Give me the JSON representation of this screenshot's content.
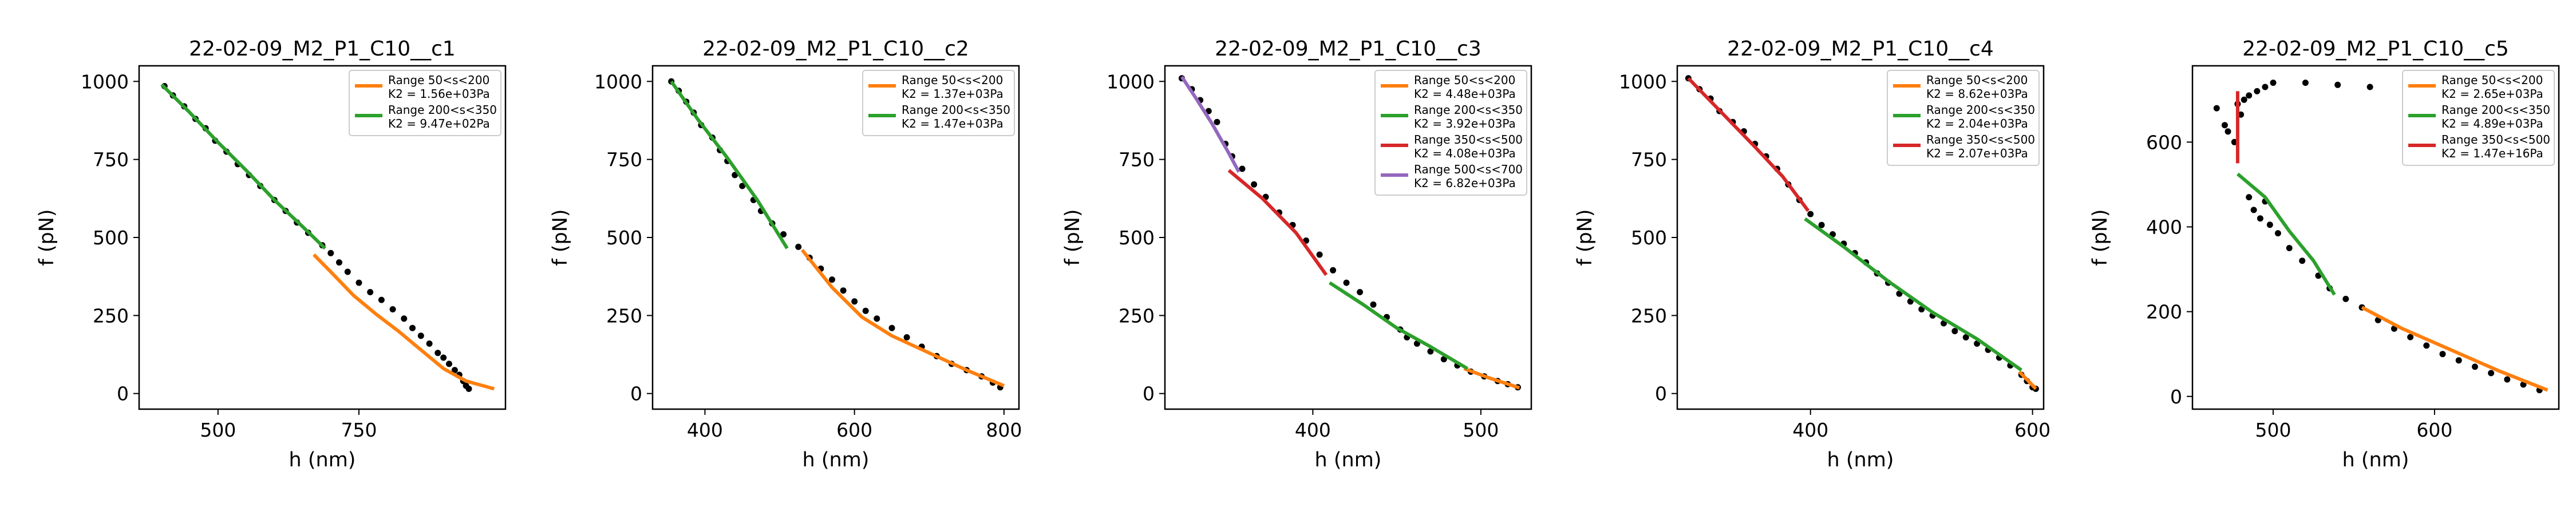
{
  "chart_data": [
    {
      "type": "scatter",
      "title": "22-02-09_M2_P1_C10__c1",
      "xlabel": "h (nm)",
      "ylabel": "f (pN)",
      "xlim": [
        360,
        1010
      ],
      "ylim": [
        -50,
        1050
      ],
      "xticks": [
        500,
        750
      ],
      "yticks": [
        0,
        250,
        500,
        750,
        1000
      ],
      "legend_position": "upper right",
      "points": [
        [
          405,
          985
        ],
        [
          420,
          955
        ],
        [
          440,
          920
        ],
        [
          460,
          880
        ],
        [
          478,
          850
        ],
        [
          495,
          810
        ],
        [
          515,
          775
        ],
        [
          535,
          735
        ],
        [
          555,
          700
        ],
        [
          575,
          665
        ],
        [
          600,
          620
        ],
        [
          620,
          585
        ],
        [
          640,
          548
        ],
        [
          660,
          515
        ],
        [
          685,
          475
        ],
        [
          700,
          450
        ],
        [
          715,
          420
        ],
        [
          730,
          390
        ],
        [
          750,
          355
        ],
        [
          770,
          325
        ],
        [
          790,
          300
        ],
        [
          810,
          270
        ],
        [
          830,
          240
        ],
        [
          845,
          210
        ],
        [
          860,
          185
        ],
        [
          875,
          160
        ],
        [
          890,
          130
        ],
        [
          900,
          115
        ],
        [
          910,
          95
        ],
        [
          920,
          75
        ],
        [
          928,
          60
        ],
        [
          935,
          40
        ],
        [
          940,
          25
        ],
        [
          945,
          15
        ]
      ],
      "series": [
        {
          "name": "Range 50<s<200",
          "sublabel": "K2 = 1.56e+03Pa",
          "color": "#ff7f0e",
          "points": [
            [
              670,
              445
            ],
            [
              700,
              390
            ],
            [
              740,
              315
            ],
            [
              780,
              255
            ],
            [
              820,
              200
            ],
            [
              860,
              140
            ],
            [
              900,
              80
            ],
            [
              940,
              40
            ],
            [
              990,
              15
            ]
          ]
        },
        {
          "name": "Range 200<s<350",
          "sublabel": "K2 = 9.47e+02Pa",
          "color": "#2ca02c",
          "points": [
            [
              400,
              990
            ],
            [
              450,
              900
            ],
            [
              500,
              805
            ],
            [
              550,
              715
            ],
            [
              600,
              620
            ],
            [
              650,
              535
            ],
            [
              690,
              465
            ]
          ]
        }
      ]
    },
    {
      "type": "scatter",
      "title": "22-02-09_M2_P1_C10__c2",
      "xlabel": "h (nm)",
      "ylabel": "f (pN)",
      "xlim": [
        330,
        820
      ],
      "ylim": [
        -50,
        1050
      ],
      "xticks": [
        400,
        600,
        800
      ],
      "yticks": [
        0,
        250,
        500,
        750,
        1000
      ],
      "legend_position": "upper right",
      "points": [
        [
          355,
          1000
        ],
        [
          365,
          970
        ],
        [
          375,
          935
        ],
        [
          385,
          900
        ],
        [
          395,
          860
        ],
        [
          410,
          820
        ],
        [
          420,
          780
        ],
        [
          430,
          745
        ],
        [
          440,
          700
        ],
        [
          450,
          665
        ],
        [
          465,
          620
        ],
        [
          475,
          585
        ],
        [
          490,
          545
        ],
        [
          505,
          510
        ],
        [
          525,
          470
        ],
        [
          540,
          435
        ],
        [
          555,
          400
        ],
        [
          570,
          365
        ],
        [
          585,
          330
        ],
        [
          600,
          295
        ],
        [
          615,
          265
        ],
        [
          630,
          240
        ],
        [
          650,
          210
        ],
        [
          670,
          180
        ],
        [
          690,
          150
        ],
        [
          710,
          120
        ],
        [
          730,
          95
        ],
        [
          750,
          75
        ],
        [
          770,
          55
        ],
        [
          785,
          35
        ],
        [
          795,
          20
        ]
      ],
      "series": [
        {
          "name": "Range 50<s<200",
          "sublabel": "K2 = 1.37e+03Pa",
          "color": "#ff7f0e",
          "points": [
            [
              530,
              460
            ],
            [
              570,
              340
            ],
            [
              610,
              245
            ],
            [
              650,
              185
            ],
            [
              700,
              130
            ],
            [
              750,
              75
            ],
            [
              800,
              25
            ]
          ]
        },
        {
          "name": "Range 200<s<350",
          "sublabel": "K2 = 1.47e+03Pa",
          "color": "#2ca02c",
          "points": [
            [
              355,
              1000
            ],
            [
              390,
              880
            ],
            [
              430,
              755
            ],
            [
              470,
              620
            ],
            [
              510,
              465
            ]
          ]
        }
      ]
    },
    {
      "type": "scatter",
      "title": "22-02-09_M2_P1_C10__c3",
      "xlabel": "h (nm)",
      "ylabel": "f (pN)",
      "xlim": [
        312,
        530
      ],
      "ylim": [
        -50,
        1050
      ],
      "xticks": [
        400,
        500
      ],
      "yticks": [
        0,
        250,
        500,
        750,
        1000
      ],
      "legend_position": "upper right",
      "points": [
        [
          322,
          1010
        ],
        [
          328,
          975
        ],
        [
          333,
          940
        ],
        [
          338,
          905
        ],
        [
          343,
          870
        ],
        [
          348,
          800
        ],
        [
          352,
          760
        ],
        [
          358,
          720
        ],
        [
          365,
          670
        ],
        [
          372,
          630
        ],
        [
          380,
          580
        ],
        [
          388,
          540
        ],
        [
          396,
          490
        ],
        [
          404,
          445
        ],
        [
          412,
          395
        ],
        [
          420,
          355
        ],
        [
          428,
          325
        ],
        [
          436,
          285
        ],
        [
          444,
          245
        ],
        [
          452,
          205
        ],
        [
          456,
          180
        ],
        [
          462,
          160
        ],
        [
          470,
          135
        ],
        [
          478,
          110
        ],
        [
          486,
          90
        ],
        [
          494,
          70
        ],
        [
          502,
          55
        ],
        [
          510,
          40
        ],
        [
          516,
          30
        ],
        [
          522,
          20
        ]
      ],
      "series": [
        {
          "name": "Range 50<s<200",
          "sublabel": "K2 = 4.48e+03Pa",
          "color": "#ff7f0e",
          "points": [
            [
              490,
              80
            ],
            [
              505,
              50
            ],
            [
              523,
              18
            ]
          ]
        },
        {
          "name": "Range 200<s<350",
          "sublabel": "K2 = 3.92e+03Pa",
          "color": "#2ca02c",
          "points": [
            [
              410,
              355
            ],
            [
              430,
              285
            ],
            [
              450,
              210
            ],
            [
              470,
              150
            ],
            [
              492,
              80
            ]
          ]
        },
        {
          "name": "Range 350<s<500",
          "sublabel": "K2 = 4.08e+03Pa",
          "color": "#d62728",
          "points": [
            [
              350,
              715
            ],
            [
              370,
              625
            ],
            [
              390,
              515
            ],
            [
              408,
              380
            ]
          ]
        },
        {
          "name": "Range 500<s<700",
          "sublabel": "K2 = 6.82e+03Pa",
          "color": "#9467bd",
          "points": [
            [
              322,
              1015
            ],
            [
              330,
              950
            ],
            [
              340,
              865
            ],
            [
              350,
              770
            ],
            [
              356,
              710
            ]
          ]
        }
      ]
    },
    {
      "type": "scatter",
      "title": "22-02-09_M2_P1_C10__c4",
      "xlabel": "h (nm)",
      "ylabel": "f (pN)",
      "xlim": [
        280,
        610
      ],
      "ylim": [
        -50,
        1050
      ],
      "xticks": [
        400,
        600
      ],
      "yticks": [
        0,
        250,
        500,
        750,
        1000
      ],
      "legend_position": "upper right",
      "points": [
        [
          290,
          1010
        ],
        [
          300,
          975
        ],
        [
          310,
          945
        ],
        [
          318,
          905
        ],
        [
          330,
          870
        ],
        [
          340,
          840
        ],
        [
          350,
          800
        ],
        [
          360,
          760
        ],
        [
          370,
          720
        ],
        [
          380,
          670
        ],
        [
          390,
          620
        ],
        [
          400,
          575
        ],
        [
          410,
          540
        ],
        [
          420,
          510
        ],
        [
          430,
          480
        ],
        [
          440,
          450
        ],
        [
          450,
          420
        ],
        [
          460,
          385
        ],
        [
          470,
          355
        ],
        [
          480,
          320
        ],
        [
          490,
          295
        ],
        [
          500,
          270
        ],
        [
          510,
          250
        ],
        [
          520,
          225
        ],
        [
          530,
          200
        ],
        [
          540,
          180
        ],
        [
          550,
          160
        ],
        [
          560,
          140
        ],
        [
          570,
          115
        ],
        [
          580,
          90
        ],
        [
          590,
          60
        ],
        [
          595,
          40
        ],
        [
          600,
          20
        ],
        [
          603,
          15
        ]
      ],
      "series": [
        {
          "name": "Range 50<s<200",
          "sublabel": "K2 = 8.62e+03Pa",
          "color": "#ff7f0e",
          "points": [
            [
              588,
              70
            ],
            [
              595,
              45
            ],
            [
              603,
              15
            ]
          ]
        },
        {
          "name": "Range 200<s<350",
          "sublabel": "K2 = 2.04e+03Pa",
          "color": "#2ca02c",
          "points": [
            [
              395,
              560
            ],
            [
              430,
              470
            ],
            [
              470,
              360
            ],
            [
              510,
              260
            ],
            [
              550,
              175
            ],
            [
              590,
              75
            ]
          ]
        },
        {
          "name": "Range 350<s<500",
          "sublabel": "K2 = 2.07e+03Pa",
          "color": "#d62728",
          "points": [
            [
              290,
              1010
            ],
            [
              320,
              900
            ],
            [
              350,
              790
            ],
            [
              375,
              695
            ],
            [
              398,
              585
            ]
          ]
        }
      ]
    },
    {
      "type": "scatter",
      "title": "22-02-09_M2_P1_C10__c5",
      "xlabel": "h (nm)",
      "ylabel": "f (pN)",
      "xlim": [
        450,
        677
      ],
      "ylim": [
        -30,
        780
      ],
      "xticks": [
        500,
        600
      ],
      "yticks": [
        0,
        200,
        400,
        600
      ],
      "legend_position": "upper right",
      "points": [
        [
          465,
          680
        ],
        [
          470,
          640
        ],
        [
          472,
          625
        ],
        [
          476,
          600
        ],
        [
          478,
          690
        ],
        [
          480,
          665
        ],
        [
          482,
          700
        ],
        [
          485,
          710
        ],
        [
          490,
          720
        ],
        [
          495,
          730
        ],
        [
          500,
          740
        ],
        [
          520,
          740
        ],
        [
          540,
          735
        ],
        [
          560,
          730
        ],
        [
          485,
          470
        ],
        [
          488,
          440
        ],
        [
          492,
          420
        ],
        [
          495,
          460
        ],
        [
          498,
          405
        ],
        [
          503,
          385
        ],
        [
          510,
          350
        ],
        [
          518,
          320
        ],
        [
          528,
          285
        ],
        [
          535,
          255
        ],
        [
          545,
          230
        ],
        [
          555,
          210
        ],
        [
          565,
          180
        ],
        [
          575,
          160
        ],
        [
          585,
          140
        ],
        [
          595,
          120
        ],
        [
          605,
          100
        ],
        [
          615,
          85
        ],
        [
          625,
          70
        ],
        [
          635,
          55
        ],
        [
          645,
          40
        ],
        [
          655,
          28
        ],
        [
          665,
          15
        ]
      ],
      "series": [
        {
          "name": "Range 50<s<200",
          "sublabel": "K2 = 2.65e+03Pa",
          "color": "#ff7f0e",
          "points": [
            [
              555,
              210
            ],
            [
              580,
              160
            ],
            [
              610,
              110
            ],
            [
              640,
              60
            ],
            [
              670,
              15
            ]
          ]
        },
        {
          "name": "Range 200<s<350",
          "sublabel": "K2 = 4.89e+03Pa",
          "color": "#2ca02c",
          "points": [
            [
              478,
              525
            ],
            [
              495,
              470
            ],
            [
              510,
              390
            ],
            [
              525,
              320
            ],
            [
              538,
              240
            ]
          ]
        },
        {
          "name": "Range 350<s<500",
          "sublabel": "K2 = 1.47e+16Pa",
          "color": "#d62728",
          "points": [
            [
              478,
              720
            ],
            [
              478,
              550
            ]
          ]
        }
      ]
    }
  ]
}
